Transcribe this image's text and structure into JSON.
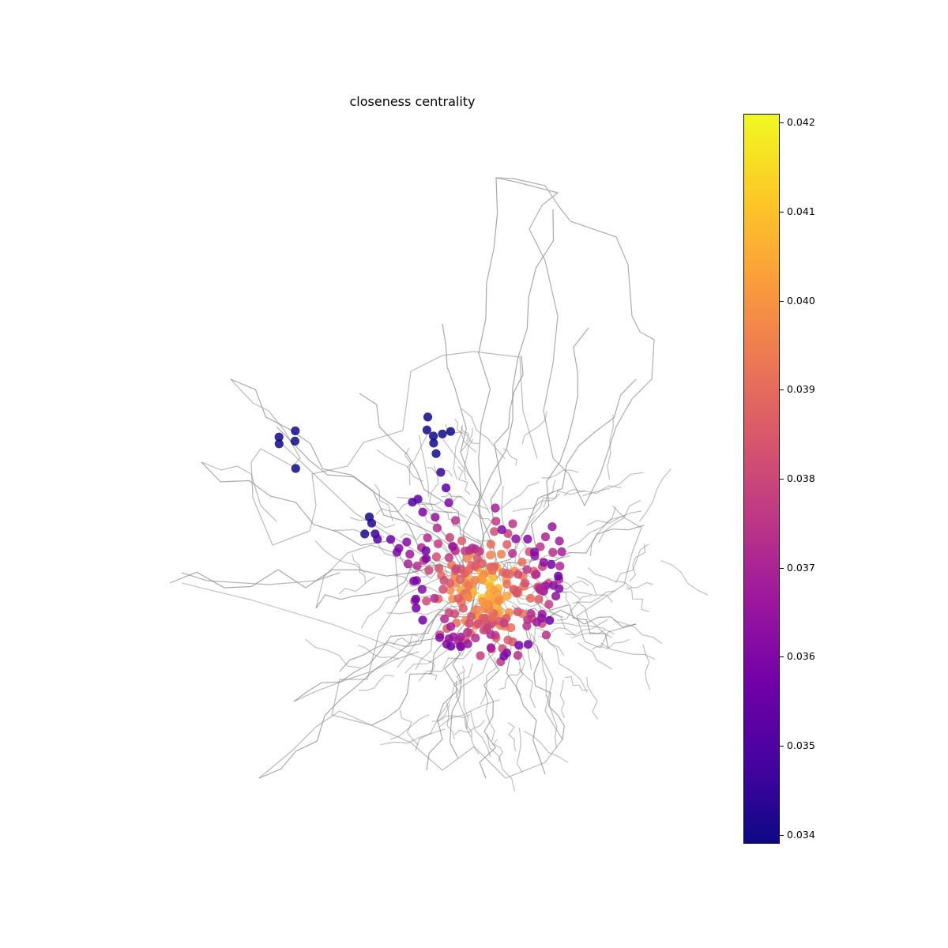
{
  "title": "closeness centrality",
  "colormap": "plasma",
  "colormap_stops": [
    "#0d0887",
    "#46039f",
    "#7201a8",
    "#9c179e",
    "#bd3786",
    "#d8576b",
    "#ed7953",
    "#fb9f3a",
    "#fdca26",
    "#f0f921"
  ],
  "edge_color": "#8c8c8c",
  "colorbar": {
    "min": 0.0339,
    "max": 0.0421,
    "ticks": [
      "0.034",
      "0.035",
      "0.036",
      "0.037",
      "0.038",
      "0.039",
      "0.040",
      "0.041",
      "0.042"
    ]
  }
}
